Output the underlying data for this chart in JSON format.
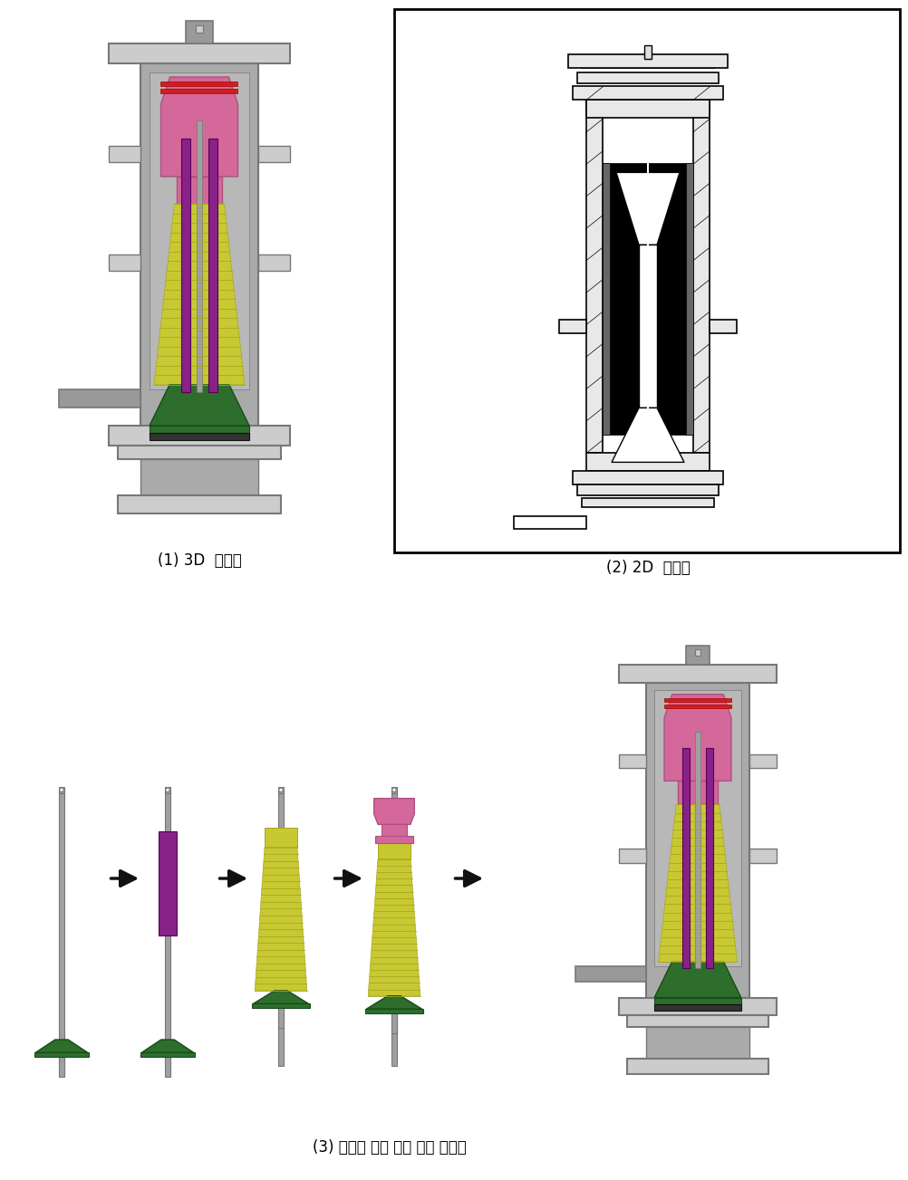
{
  "background_color": "#ffffff",
  "fig_width": 10.02,
  "fig_height": 13.03,
  "dpi": 100,
  "caption_top_left": "(1) 3D  모델링",
  "caption_top_right": "(2) 2D  내부도",
  "caption_bottom": "(3) 디스크 스택 적용 조립 순서도",
  "caption_fontsize": 12,
  "gray_body": "#aaaaaa",
  "gray_dark": "#777777",
  "gray_light": "#cccccc",
  "gray_medium": "#999999",
  "gray_inner": "#b8b8b8",
  "pink_color": "#d4689a",
  "yellow_green": "#c8c832",
  "yellow_green2": "#a8a820",
  "purple_color": "#882288",
  "green_dark": "#2d6e2d",
  "shaft_color": "#a0a0a0",
  "black_color": "#000000",
  "white_color": "#ffffff",
  "arrow_color": "#111111"
}
